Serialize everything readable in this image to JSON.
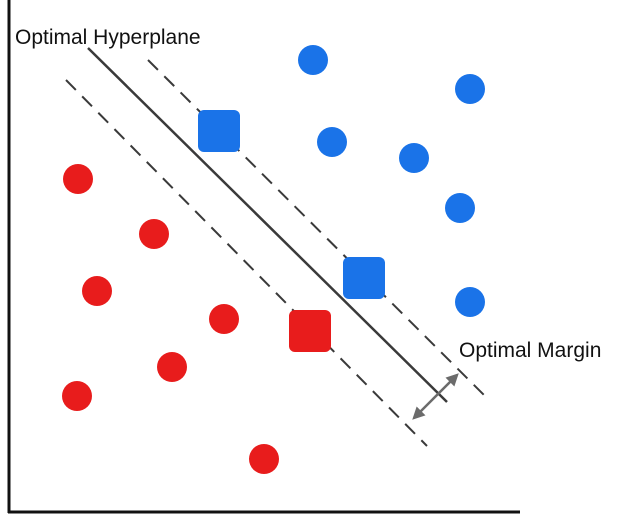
{
  "labels": {
    "hyperplane": "Optimal Hyperplane",
    "margin": "Optimal Margin"
  },
  "colors": {
    "class_blue": "#1a73e8",
    "class_red": "#e81c1c",
    "lines": "#3a3a3a",
    "arrow": "#6b6b6b",
    "axes": "#111111"
  }
}
